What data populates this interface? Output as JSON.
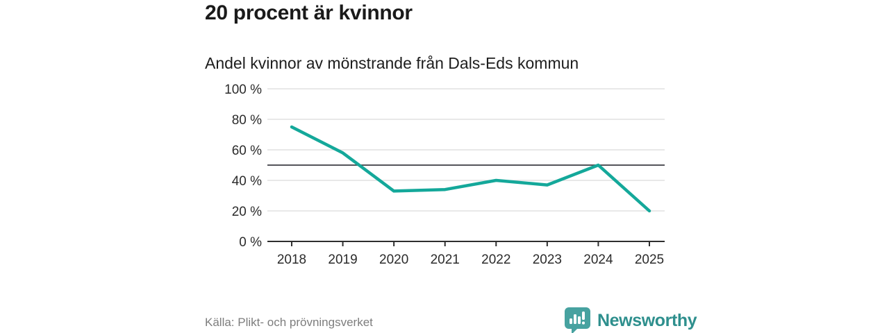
{
  "header": {
    "title": "20 procent är kvinnor",
    "subtitle": "Andel kvinnor av mönstrande från Dals-Eds kommun"
  },
  "chart_data": {
    "type": "line",
    "title": "Andel kvinnor av mönstrande från Dals-Eds kommun",
    "categories": [
      "2018",
      "2019",
      "2020",
      "2021",
      "2022",
      "2023",
      "2024",
      "2025"
    ],
    "series": [
      {
        "name": "Andel kvinnor",
        "values": [
          75,
          58,
          33,
          34,
          40,
          37,
          50,
          20
        ]
      }
    ],
    "xlabel": "",
    "ylabel": "",
    "ylim": [
      0,
      100
    ],
    "yticks": [
      0,
      20,
      40,
      60,
      80,
      100
    ],
    "ytick_labels": [
      "0 %",
      "20 %",
      "40 %",
      "60 %",
      "80 %",
      "100 %"
    ],
    "reference_line": 50,
    "grid": true,
    "legend_position": "none",
    "line_color": "#14a89a",
    "reference_line_color": "#54545a",
    "gridline_color": "#d9d9d9",
    "axis_color": "#2e2e2e",
    "tick_label_color": "#2b2b2b"
  },
  "footer": {
    "source": "Källa: Plikt- och prövningsverket",
    "brand": "Newsworthy"
  },
  "icons": {
    "logo": "newsworthy-speech-bubble-bar-chart"
  },
  "colors": {
    "brand_badge": "#47a2a0",
    "brand_text": "#2e8f8d",
    "background": "#ffffff"
  }
}
